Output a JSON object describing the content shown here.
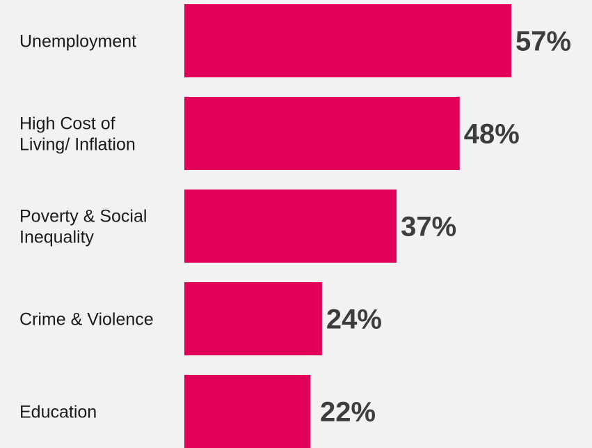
{
  "chart_data": {
    "type": "bar",
    "orientation": "horizontal",
    "categories": [
      [
        "Unemployment"
      ],
      [
        "High Cost of",
        "Living/ Inflation"
      ],
      [
        "Poverty & Social",
        "Inequality"
      ],
      [
        "Crime & Violence"
      ],
      [
        "Education"
      ]
    ],
    "values": [
      57,
      48,
      37,
      24,
      22
    ],
    "value_labels": [
      "57%",
      "48%",
      "37%",
      "24%",
      "22%"
    ],
    "unit": "%",
    "xlim": [
      0,
      57
    ],
    "grid": false,
    "legend": "none",
    "title": "",
    "xlabel": "",
    "ylabel": ""
  },
  "colors": {
    "bar": "#e3005a",
    "background": "#f2f2f2",
    "category_text": "#1a1a1a",
    "value_text": "#3d3d3d"
  }
}
